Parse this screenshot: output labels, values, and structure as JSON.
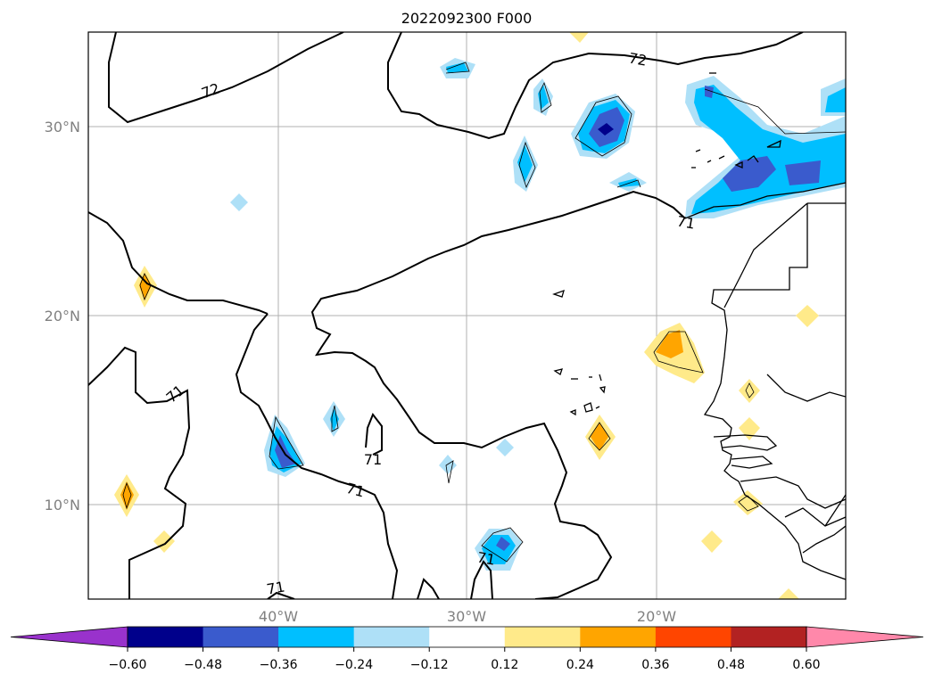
{
  "title": "2022092300 F000",
  "map": {
    "lat_labels": [
      {
        "id": "lat-30",
        "label": "30°N"
      },
      {
        "id": "lat-20",
        "label": "20°N"
      },
      {
        "id": "lat-10",
        "label": "10°N"
      }
    ],
    "lon_labels": [
      {
        "id": "lon-40",
        "label": "40°W"
      },
      {
        "id": "lon-30",
        "label": "30°W"
      },
      {
        "id": "lon-20",
        "label": "20°W"
      }
    ],
    "contour_labels": [
      "72",
      "72",
      "71",
      "71",
      "71",
      "71",
      "71",
      "71"
    ]
  },
  "colorbar": {
    "ticks": [
      "−0.60",
      "−0.48",
      "−0.36",
      "−0.24",
      "−0.12",
      "0.12",
      "0.24",
      "0.36",
      "0.48",
      "0.60"
    ],
    "colors": [
      "#9932cc",
      "#00008b",
      "#3a5bcd",
      "#00bfff",
      "#aee0f7",
      "#ffffff",
      "#ffea8a",
      "#ffa500",
      "#ff4500",
      "#b22222",
      "#ff88aa"
    ],
    "extend": "both"
  },
  "colors": {
    "light_blue": "#aee0f7",
    "blue": "#00bfff",
    "medium_blue": "#3a5bcd",
    "navy": "#00008b",
    "yellow": "#ffea8a",
    "orange": "#ffa500"
  }
}
